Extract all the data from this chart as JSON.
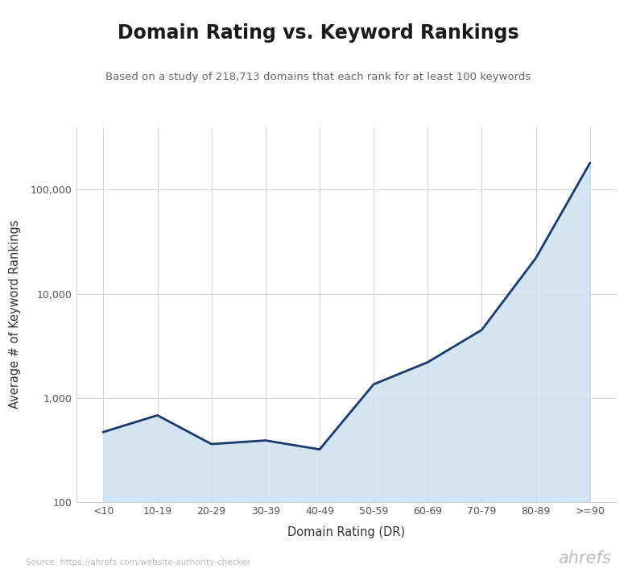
{
  "title": "Domain Rating vs. Keyword Rankings",
  "subtitle": "Based on a study of 218,713 domains that each rank for at least 100 keywords",
  "xlabel": "Domain Rating (DR)",
  "ylabel": "Average # of Keyword Rankings",
  "source": "Source: https://ahrefs.com/website-authority-checker",
  "branding": "ahrefs",
  "categories": [
    "<10",
    "10-19",
    "20-29",
    "30-39",
    "40-49",
    "50-59",
    "60-69",
    "70-79",
    "80-89",
    ">=90"
  ],
  "values": [
    470,
    680,
    360,
    390,
    320,
    1350,
    2200,
    4500,
    22000,
    180000
  ],
  "line_color": "#1a3a6b",
  "fill_color": "#cce0f0",
  "fill_alpha": 0.85,
  "background_color": "#ffffff",
  "grid_color": "#cccccc",
  "title_fontsize": 17,
  "subtitle_fontsize": 9.5,
  "axis_label_fontsize": 10.5,
  "tick_fontsize": 9,
  "source_fontsize": 7.5,
  "branding_fontsize": 15,
  "ylim": [
    100,
    400000
  ],
  "yticks": [
    100,
    1000,
    10000,
    100000
  ],
  "ytick_labels": [
    "100",
    "1,000",
    "10,000",
    "100,000"
  ]
}
